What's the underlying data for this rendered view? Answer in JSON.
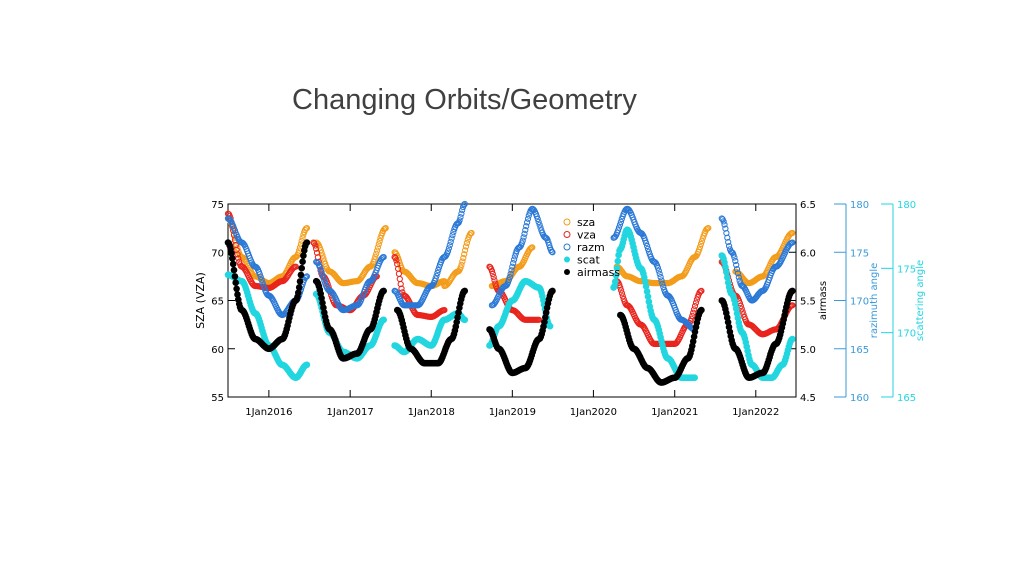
{
  "slide": {
    "title": "Changing Orbits/Geometry"
  },
  "chart_data": {
    "type": "scatter",
    "title": "",
    "xlabel": "",
    "xlim": [
      "2015-07-01",
      "2022-07-01"
    ],
    "xticks": [
      "1Jan2016",
      "1Jan2017",
      "1Jan2018",
      "1Jan2019",
      "1Jan2020",
      "1Jan2021",
      "1Jan2022"
    ],
    "xtick_dates": [
      "2016-01-01",
      "2017-01-01",
      "2018-01-01",
      "2019-01-01",
      "2020-01-01",
      "2021-01-01",
      "2022-01-01"
    ],
    "axes": {
      "left": {
        "label": "SZA (VZA)",
        "lim": [
          55,
          75
        ],
        "ticks": [
          "55",
          "60",
          "65",
          "70",
          "75"
        ]
      },
      "airmass": {
        "label": "airmass",
        "lim": [
          4.5,
          6.5
        ],
        "ticks": [
          "4.5",
          "5.0",
          "5.5",
          "6.0",
          "6.5"
        ]
      },
      "razimuth": {
        "label": "razimuth angle",
        "lim": [
          160,
          180
        ],
        "ticks": [
          "160",
          "165",
          "170",
          "175",
          "180"
        ],
        "color": "#3a9ad9"
      },
      "scattering": {
        "label": "scattering angle",
        "lim": [
          165,
          180
        ],
        "ticks": [
          "165",
          "170",
          "175",
          "180"
        ],
        "color": "#22d6e0"
      }
    },
    "legend": {
      "position": "top-right",
      "entries": [
        {
          "label": "sza",
          "symbol": "open-circle",
          "color": "#f39c1a"
        },
        {
          "label": "vza",
          "symbol": "open-circle",
          "color": "#e8241c"
        },
        {
          "label": "razm",
          "symbol": "open-circle",
          "color": "#2a78d6"
        },
        {
          "label": "scat",
          "symbol": "filled-circle",
          "color": "#22d6e0"
        },
        {
          "label": "airmass",
          "symbol": "filled-circle",
          "color": "#000000"
        }
      ]
    },
    "series": [
      {
        "name": "sza",
        "axis": "left",
        "color": "#f39c1a",
        "filled": false,
        "segments": [
          [
            [
              "2015-07-01",
              73.5
            ],
            [
              "2015-09-01",
              69.5
            ],
            [
              "2015-11-01",
              67.5
            ],
            [
              "2016-01-01",
              66.8
            ],
            [
              "2016-03-01",
              67.5
            ],
            [
              "2016-05-01",
              69.5
            ],
            [
              "2016-06-20",
              72.5
            ]
          ],
          [
            [
              "2016-08-01",
              71.0
            ],
            [
              "2016-10-01",
              68.0
            ],
            [
              "2016-12-01",
              66.8
            ],
            [
              "2017-02-01",
              67.0
            ],
            [
              "2017-04-01",
              68.5
            ],
            [
              "2017-06-10",
              72.5
            ]
          ],
          [
            [
              "2017-07-20",
              70.0
            ],
            [
              "2017-09-01",
              68.0
            ],
            [
              "2017-11-01",
              66.8
            ],
            [
              "2018-01-01",
              66.5
            ],
            [
              "2018-03-01",
              67.0
            ]
          ],
          [
            [
              "2018-03-01",
              66.5
            ],
            [
              "2018-05-01",
              68.0
            ],
            [
              "2018-07-01",
              72.0
            ]
          ],
          [
            [
              "2018-10-01",
              66.5
            ],
            [
              "2018-12-01",
              67.0
            ],
            [
              "2019-02-01",
              68.5
            ],
            [
              "2019-04-01",
              70.5
            ]
          ],
          [
            [
              "2020-04-15",
              68.5
            ],
            [
              "2020-06-01",
              67.5
            ],
            [
              "2020-08-01",
              67.0
            ],
            [
              "2020-10-01",
              66.8
            ],
            [
              "2020-12-01",
              66.8
            ],
            [
              "2021-02-01",
              67.5
            ],
            [
              "2021-04-01",
              69.5
            ],
            [
              "2021-06-01",
              72.5
            ]
          ],
          [
            [
              "2021-10-01",
              68.0
            ],
            [
              "2021-12-01",
              66.8
            ],
            [
              "2022-02-01",
              67.5
            ],
            [
              "2022-04-01",
              69.5
            ],
            [
              "2022-06-15",
              72.0
            ]
          ]
        ]
      },
      {
        "name": "vza",
        "axis": "left",
        "color": "#e8241c",
        "filled": false,
        "segments": [
          [
            [
              "2015-07-01",
              74.0
            ],
            [
              "2015-09-01",
              68.5
            ],
            [
              "2015-11-01",
              66.5
            ],
            [
              "2016-01-01",
              66.3
            ],
            [
              "2016-03-01",
              67.0
            ],
            [
              "2016-05-01",
              68.5
            ]
          ],
          [
            [
              "2016-07-20",
              71.0
            ],
            [
              "2016-09-01",
              67.5
            ],
            [
              "2016-11-01",
              64.5
            ],
            [
              "2017-01-01",
              64.0
            ],
            [
              "2017-03-01",
              65.5
            ],
            [
              "2017-05-01",
              67.5
            ]
          ],
          [
            [
              "2017-07-20",
              69.5
            ],
            [
              "2017-09-01",
              65.5
            ],
            [
              "2017-11-01",
              63.5
            ],
            [
              "2018-01-01",
              63.3
            ],
            [
              "2018-03-01",
              64.0
            ]
          ],
          [
            [
              "2018-09-20",
              68.5
            ],
            [
              "2018-11-01",
              66.0
            ],
            [
              "2019-01-01",
              64.0
            ],
            [
              "2019-03-01",
              63.0
            ],
            [
              "2019-05-01",
              63.0
            ]
          ],
          [
            [
              "2020-04-15",
              67.0
            ],
            [
              "2020-06-01",
              64.5
            ],
            [
              "2020-08-01",
              62.5
            ],
            [
              "2020-10-01",
              60.5
            ],
            [
              "2021-01-01",
              60.5
            ],
            [
              "2021-03-01",
              62.5
            ],
            [
              "2021-05-01",
              66.0
            ]
          ],
          [
            [
              "2021-08-01",
              69.0
            ],
            [
              "2021-10-01",
              65.5
            ],
            [
              "2021-12-01",
              62.5
            ],
            [
              "2022-02-01",
              61.5
            ],
            [
              "2022-04-01",
              62.0
            ],
            [
              "2022-06-15",
              64.5
            ]
          ]
        ]
      },
      {
        "name": "razm",
        "axis": "razimuth",
        "color": "#2a78d6",
        "filled": false,
        "segments": [
          [
            [
              "2015-07-01",
              178.5
            ],
            [
              "2015-09-01",
              176.0
            ],
            [
              "2015-11-01",
              173.5
            ],
            [
              "2016-01-01",
              170.5
            ],
            [
              "2016-03-01",
              168.5
            ],
            [
              "2016-05-01",
              170.0
            ],
            [
              "2016-06-20",
              172.5
            ]
          ],
          [
            [
              "2016-08-01",
              174.0
            ],
            [
              "2016-10-01",
              171.0
            ],
            [
              "2016-12-01",
              169.0
            ],
            [
              "2017-02-01",
              169.5
            ],
            [
              "2017-04-01",
              172.0
            ],
            [
              "2017-06-01",
              174.5
            ]
          ],
          [
            [
              "2017-07-20",
              171.0
            ],
            [
              "2017-09-01",
              169.5
            ],
            [
              "2017-11-01",
              169.5
            ],
            [
              "2018-01-01",
              171.5
            ],
            [
              "2018-03-01",
              174.5
            ],
            [
              "2018-05-01",
              178.0
            ],
            [
              "2018-06-01",
              180.0
            ]
          ],
          [
            [
              "2018-10-01",
              169.5
            ],
            [
              "2018-12-01",
              171.5
            ],
            [
              "2019-02-01",
              175.5
            ],
            [
              "2019-04-01",
              179.5
            ],
            [
              "2019-06-01",
              176.5
            ],
            [
              "2019-07-01",
              175.0
            ]
          ],
          [
            [
              "2020-04-01",
              176.5
            ],
            [
              "2020-06-01",
              179.5
            ],
            [
              "2020-08-01",
              177.0
            ],
            [
              "2020-10-01",
              174.0
            ],
            [
              "2020-12-01",
              170.5
            ],
            [
              "2021-02-01",
              168.0
            ],
            [
              "2021-04-01",
              167.0
            ]
          ],
          [
            [
              "2021-08-01",
              178.5
            ],
            [
              "2021-09-15",
              175.0
            ],
            [
              "2021-11-01",
              171.5
            ],
            [
              "2021-12-15",
              170.0
            ],
            [
              "2022-02-01",
              171.0
            ],
            [
              "2022-04-01",
              173.5
            ],
            [
              "2022-06-15",
              176.0
            ]
          ]
        ]
      },
      {
        "name": "scat",
        "axis": "scattering",
        "color": "#22d6e0",
        "filled": true,
        "segments": [
          [
            [
              "2015-07-01",
              174.5
            ],
            [
              "2015-09-01",
              174.0
            ],
            [
              "2015-11-01",
              171.5
            ],
            [
              "2016-01-01",
              169.0
            ],
            [
              "2016-03-01",
              167.5
            ],
            [
              "2016-05-01",
              166.5
            ],
            [
              "2016-06-20",
              167.5
            ]
          ],
          [
            [
              "2016-08-01",
              173.0
            ],
            [
              "2016-10-01",
              170.0
            ],
            [
              "2016-12-01",
              168.5
            ],
            [
              "2017-02-01",
              168.0
            ],
            [
              "2017-04-01",
              169.0
            ],
            [
              "2017-06-01",
              171.0
            ]
          ],
          [
            [
              "2017-07-20",
              169.0
            ],
            [
              "2017-09-01",
              168.5
            ],
            [
              "2017-11-01",
              169.5
            ],
            [
              "2018-01-01",
              169.0
            ],
            [
              "2018-03-01",
              171.0
            ],
            [
              "2018-05-01",
              171.5
            ],
            [
              "2018-06-01",
              171.0
            ]
          ],
          [
            [
              "2018-09-20",
              169.0
            ],
            [
              "2018-11-01",
              170.5
            ],
            [
              "2019-01-01",
              172.5
            ],
            [
              "2019-03-01",
              174.0
            ],
            [
              "2019-05-01",
              173.5
            ],
            [
              "2019-06-20",
              170.5
            ]
          ],
          [
            [
              "2020-04-01",
              173.5
            ],
            [
              "2020-05-01",
              176.5
            ],
            [
              "2020-06-01",
              178.0
            ],
            [
              "2020-08-01",
              175.0
            ],
            [
              "2020-10-01",
              171.0
            ],
            [
              "2020-12-01",
              168.0
            ],
            [
              "2021-02-01",
              166.5
            ],
            [
              "2021-04-01",
              166.5
            ]
          ],
          [
            [
              "2021-08-01",
              176.0
            ],
            [
              "2021-09-15",
              173.0
            ],
            [
              "2021-11-01",
              170.0
            ],
            [
              "2021-12-15",
              167.5
            ],
            [
              "2022-02-01",
              166.5
            ],
            [
              "2022-03-15",
              166.5
            ],
            [
              "2022-05-01",
              167.5
            ],
            [
              "2022-06-15",
              169.5
            ]
          ]
        ]
      },
      {
        "name": "airmass",
        "axis": "airmass",
        "color": "#000000",
        "filled": true,
        "segments": [
          [
            [
              "2015-07-01",
              6.1
            ],
            [
              "2015-09-01",
              5.4
            ],
            [
              "2015-11-01",
              5.1
            ],
            [
              "2016-01-01",
              5.0
            ],
            [
              "2016-03-01",
              5.1
            ],
            [
              "2016-05-01",
              5.5
            ],
            [
              "2016-06-20",
              6.1
            ]
          ],
          [
            [
              "2016-08-01",
              5.7
            ],
            [
              "2016-10-01",
              5.2
            ],
            [
              "2016-12-01",
              4.9
            ],
            [
              "2017-02-01",
              4.95
            ],
            [
              "2017-04-01",
              5.2
            ],
            [
              "2017-06-01",
              5.6
            ]
          ],
          [
            [
              "2017-08-01",
              5.4
            ],
            [
              "2017-10-01",
              5.0
            ],
            [
              "2017-12-01",
              4.85
            ],
            [
              "2018-02-01",
              4.85
            ],
            [
              "2018-04-01",
              5.1
            ],
            [
              "2018-06-01",
              5.6
            ]
          ],
          [
            [
              "2018-09-20",
              5.2
            ],
            [
              "2018-11-01",
              5.0
            ],
            [
              "2019-01-01",
              4.75
            ],
            [
              "2019-03-01",
              4.8
            ],
            [
              "2019-05-01",
              5.1
            ],
            [
              "2019-07-01",
              5.6
            ]
          ],
          [
            [
              "2020-05-01",
              5.35
            ],
            [
              "2020-07-01",
              5.0
            ],
            [
              "2020-09-01",
              4.8
            ],
            [
              "2020-11-01",
              4.65
            ],
            [
              "2021-01-01",
              4.7
            ],
            [
              "2021-03-01",
              4.9
            ],
            [
              "2021-05-01",
              5.4
            ]
          ],
          [
            [
              "2021-08-01",
              5.5
            ],
            [
              "2021-10-01",
              5.0
            ],
            [
              "2021-12-01",
              4.7
            ],
            [
              "2022-02-01",
              4.75
            ],
            [
              "2022-04-01",
              5.05
            ],
            [
              "2022-06-15",
              5.6
            ]
          ]
        ]
      }
    ]
  }
}
